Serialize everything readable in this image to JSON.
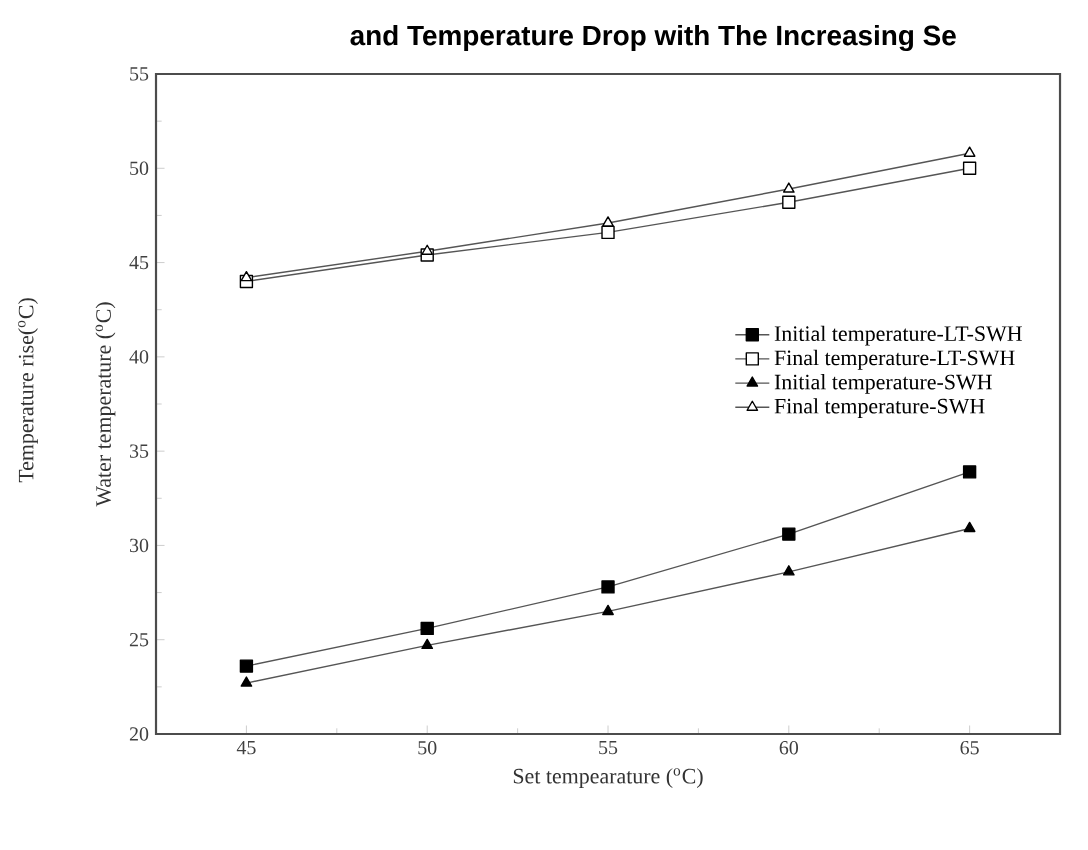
{
  "chart_data": {
    "type": "line",
    "title": "and Temperature Drop with The Increasing Se",
    "xlabel": "Set tempearature ($^{o}$C)",
    "ylabel": "Water temperature ($^{o}$C)",
    "annotations": [
      "Temperature rise($^{o}$C)"
    ],
    "x": [
      45,
      50,
      55,
      60,
      65
    ],
    "series": [
      {
        "name": "Initial temperature-LT-SWH",
        "color": "#000000",
        "marker": "square",
        "values": [
          23.6,
          25.6,
          27.8,
          30.6,
          33.9
        ]
      },
      {
        "name": "Final temperature-LT-SWH",
        "color": "#ffffff",
        "marker": "square",
        "values": [
          44.0,
          45.4,
          46.6,
          48.2,
          50.0
        ]
      },
      {
        "name": "Initial temperature-SWH",
        "color": "#000000",
        "marker": "triangle",
        "values": [
          22.7,
          24.7,
          26.5,
          28.6,
          30.9
        ]
      },
      {
        "name": "Final temperature-SWH",
        "color": "#ffffff",
        "marker": "triangle",
        "values": [
          44.2,
          45.6,
          47.1,
          48.9,
          50.8
        ]
      }
    ],
    "xlim": [
      42.5,
      67.5
    ],
    "ylim": [
      20,
      55
    ],
    "xticks": [
      45,
      50,
      55,
      60,
      65
    ],
    "yticks": [
      20,
      25,
      30,
      35,
      40,
      45,
      50,
      55
    ],
    "grid": false,
    "legend": "right",
    "line_style": "solid"
  }
}
